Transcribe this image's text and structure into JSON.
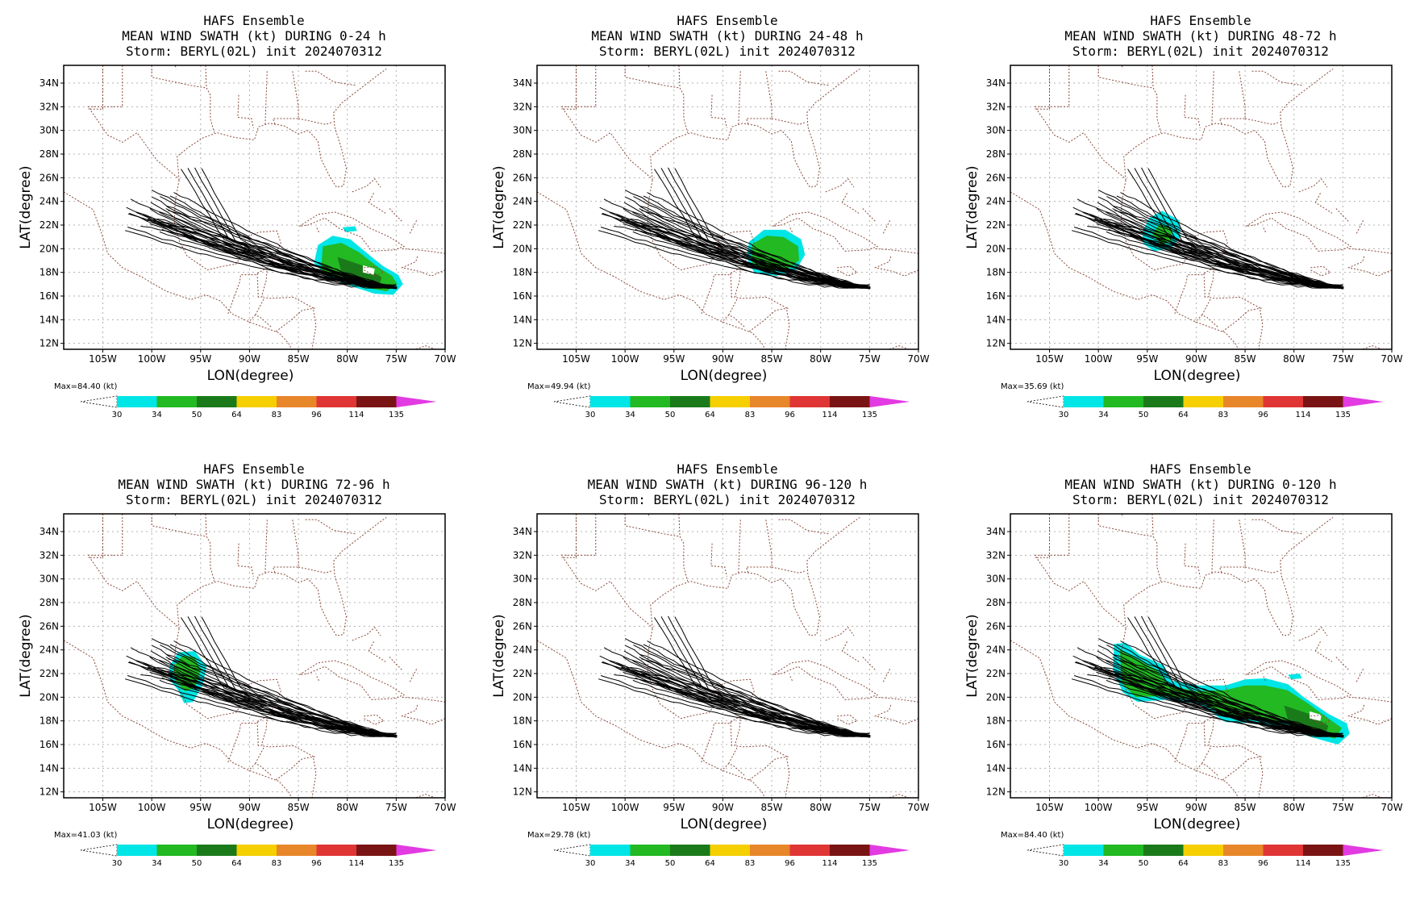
{
  "colorbar": {
    "levels": [
      "30",
      "34",
      "50",
      "64",
      "83",
      "96",
      "114",
      "135"
    ],
    "colors": [
      "#00e5e5",
      "#22b922",
      "#1a7a1a",
      "#f5cf00",
      "#e8862a",
      "#e03535",
      "#7a1414",
      "#e23be2"
    ],
    "unit_label": "(kt)"
  },
  "axes": {
    "xlabel": "LON(degree)",
    "ylabel": "LAT(degree)",
    "xticks": [
      "105W",
      "100W",
      "95W",
      "90W",
      "85W",
      "80W",
      "75W",
      "70W"
    ],
    "yticks": [
      "34N",
      "32N",
      "30N",
      "28N",
      "26N",
      "24N",
      "22N",
      "20N",
      "18N",
      "16N",
      "14N",
      "12N"
    ],
    "xlim": [
      -109,
      -70
    ],
    "ylim": [
      11.5,
      35.5
    ]
  },
  "panels": [
    {
      "title1": "HAFS Ensemble",
      "title2": "MEAN WIND SWATH (kt) DURING  0-24 h",
      "title3": "Storm: BERYL(02L) init 2024070312",
      "max_label": "Max=84.40 (kt)"
    },
    {
      "title1": "HAFS Ensemble",
      "title2": "MEAN WIND SWATH (kt) DURING 24-48 h",
      "title3": "Storm: BERYL(02L) init 2024070312",
      "max_label": "Max=49.94 (kt)"
    },
    {
      "title1": "HAFS Ensemble",
      "title2": "MEAN WIND SWATH (kt) DURING 48-72 h",
      "title3": "Storm: BERYL(02L) init 2024070312",
      "max_label": "Max=35.69 (kt)"
    },
    {
      "title1": "HAFS Ensemble",
      "title2": "MEAN WIND SWATH (kt) DURING 72-96 h",
      "title3": "Storm: BERYL(02L) init 2024070312",
      "max_label": "Max=41.03 (kt)"
    },
    {
      "title1": "HAFS Ensemble",
      "title2": "MEAN WIND SWATH (kt) DURING 96-120 h",
      "title3": "Storm: BERYL(02L) init 2024070312",
      "max_label": "Max=29.78 (kt)"
    },
    {
      "title1": "HAFS Ensemble",
      "title2": "MEAN WIND SWATH (kt) DURING 0-120 h",
      "title3": "Storm: BERYL(02L) init 2024070312",
      "max_label": "Max=84.40 (kt)"
    }
  ]
}
